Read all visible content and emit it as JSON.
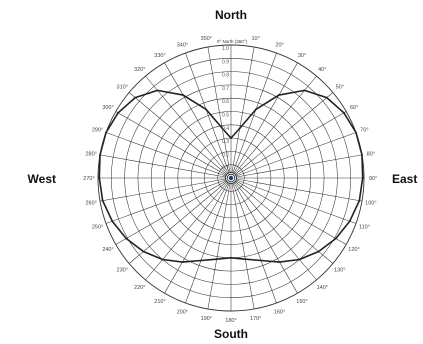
{
  "chart_data": {
    "type": "polar-line",
    "zero_note": "0° North (360°)",
    "compass": {
      "north": "North",
      "south": "South",
      "east": "East",
      "west": "West"
    },
    "angle_ticks": [
      {
        "deg": 10,
        "label": "10°"
      },
      {
        "deg": 20,
        "label": "20°"
      },
      {
        "deg": 30,
        "label": "30°"
      },
      {
        "deg": 40,
        "label": "40°"
      },
      {
        "deg": 50,
        "label": "50°"
      },
      {
        "deg": 60,
        "label": "60°"
      },
      {
        "deg": 70,
        "label": "70°"
      },
      {
        "deg": 80,
        "label": "80°"
      },
      {
        "deg": 90,
        "label": "90°"
      },
      {
        "deg": 100,
        "label": "100°"
      },
      {
        "deg": 110,
        "label": "110°"
      },
      {
        "deg": 120,
        "label": "120°"
      },
      {
        "deg": 130,
        "label": "130°"
      },
      {
        "deg": 140,
        "label": "140°"
      },
      {
        "deg": 150,
        "label": "150°"
      },
      {
        "deg": 160,
        "label": "160°"
      },
      {
        "deg": 170,
        "label": "170°"
      },
      {
        "deg": 180,
        "label": "180°"
      },
      {
        "deg": 190,
        "label": "190°"
      },
      {
        "deg": 200,
        "label": "200°"
      },
      {
        "deg": 210,
        "label": "210°"
      },
      {
        "deg": 220,
        "label": "220°"
      },
      {
        "deg": 230,
        "label": "230°"
      },
      {
        "deg": 240,
        "label": "240°"
      },
      {
        "deg": 250,
        "label": "250°"
      },
      {
        "deg": 260,
        "label": "260°"
      },
      {
        "deg": 270,
        "label": "270°"
      },
      {
        "deg": 280,
        "label": "280°"
      },
      {
        "deg": 290,
        "label": "290°"
      },
      {
        "deg": 300,
        "label": "300°"
      },
      {
        "deg": 310,
        "label": "310°"
      },
      {
        "deg": 320,
        "label": "320°"
      },
      {
        "deg": 330,
        "label": "330°"
      },
      {
        "deg": 340,
        "label": "340°"
      },
      {
        "deg": 350,
        "label": "350°"
      }
    ],
    "radial_ticks": [
      {
        "value": 0.1,
        "label": "0.1"
      },
      {
        "value": 0.2,
        "label": "0.2"
      },
      {
        "value": 0.3,
        "label": "0.3"
      },
      {
        "value": 0.4,
        "label": "0.4"
      },
      {
        "value": 0.5,
        "label": "0.5"
      },
      {
        "value": 0.6,
        "label": "0.6"
      },
      {
        "value": 0.7,
        "label": "0.7"
      },
      {
        "value": 0.8,
        "label": "0.8"
      },
      {
        "value": 0.9,
        "label": "0.9"
      },
      {
        "value": 1.0,
        "label": "1.0"
      }
    ],
    "r_range": [
      0,
      1.0
    ],
    "grid": true,
    "series": [
      {
        "line_color": "#222222",
        "points": [
          {
            "deg": 0,
            "r": 0.3
          },
          {
            "deg": 10,
            "r": 0.38
          },
          {
            "deg": 20,
            "r": 0.55
          },
          {
            "deg": 30,
            "r": 0.72
          },
          {
            "deg": 40,
            "r": 0.86
          },
          {
            "deg": 50,
            "r": 0.94
          },
          {
            "deg": 60,
            "r": 0.98
          },
          {
            "deg": 70,
            "r": 1.0
          },
          {
            "deg": 80,
            "r": 1.0
          },
          {
            "deg": 90,
            "r": 0.99
          },
          {
            "deg": 100,
            "r": 0.98
          },
          {
            "deg": 110,
            "r": 0.95
          },
          {
            "deg": 120,
            "r": 0.91
          },
          {
            "deg": 130,
            "r": 0.86
          },
          {
            "deg": 140,
            "r": 0.8
          },
          {
            "deg": 150,
            "r": 0.73
          },
          {
            "deg": 160,
            "r": 0.66
          },
          {
            "deg": 170,
            "r": 0.62
          },
          {
            "deg": 180,
            "r": 0.6
          },
          {
            "deg": 190,
            "r": 0.62
          },
          {
            "deg": 200,
            "r": 0.66
          },
          {
            "deg": 210,
            "r": 0.73
          },
          {
            "deg": 220,
            "r": 0.8
          },
          {
            "deg": 230,
            "r": 0.86
          },
          {
            "deg": 240,
            "r": 0.91
          },
          {
            "deg": 250,
            "r": 0.95
          },
          {
            "deg": 260,
            "r": 0.98
          },
          {
            "deg": 270,
            "r": 0.99
          },
          {
            "deg": 280,
            "r": 1.0
          },
          {
            "deg": 290,
            "r": 1.0
          },
          {
            "deg": 300,
            "r": 0.98
          },
          {
            "deg": 310,
            "r": 0.94
          },
          {
            "deg": 320,
            "r": 0.86
          },
          {
            "deg": 330,
            "r": 0.72
          },
          {
            "deg": 340,
            "r": 0.55
          },
          {
            "deg": 350,
            "r": 0.38
          }
        ]
      }
    ],
    "colors": {
      "grid": "#333333",
      "center": "#1a3a6a"
    }
  }
}
